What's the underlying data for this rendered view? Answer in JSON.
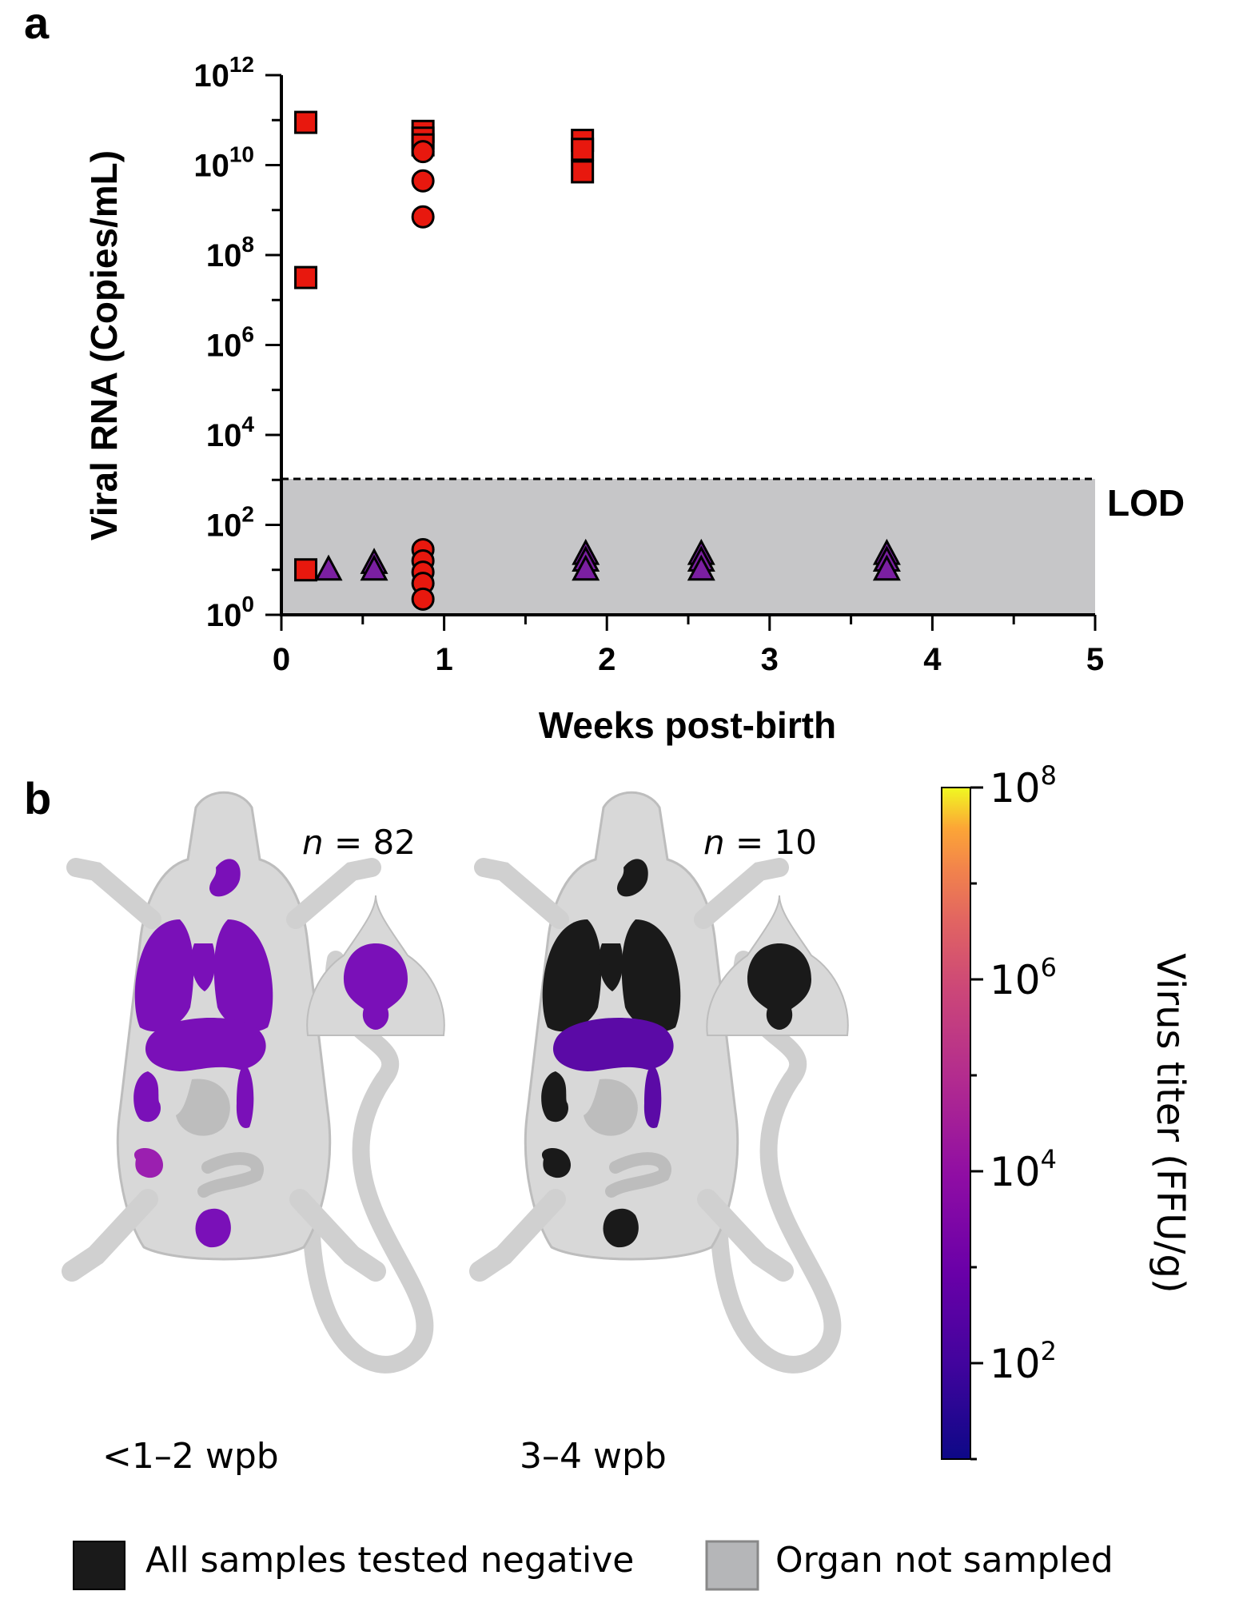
{
  "panel_a": {
    "label": "a"
  },
  "panel_b": {
    "label": "b",
    "left": {
      "n_italic": "n",
      "n_value": " = 82",
      "caption": "<1–2 wpb"
    },
    "right": {
      "n_italic": "n",
      "n_value": " = 10",
      "caption": "3–4 wpb"
    },
    "colorbar": {
      "title": "Virus titer (FFU/g)",
      "ticks": [
        {
          "base": "10",
          "exp": "8",
          "value": 8
        },
        {
          "base": "10",
          "exp": "6",
          "value": 6
        },
        {
          "base": "10",
          "exp": "4",
          "value": 4
        },
        {
          "base": "10",
          "exp": "2",
          "value": 2
        }
      ],
      "range_log10": [
        1,
        8
      ],
      "colormap": "plasma",
      "organ_fill_left": "#7a10b8",
      "organ_fill_left_repro": "#9b1fb0",
      "organ_fill_right": "#5b0aa6",
      "negative_color": "#1a1a1a",
      "not_sampled_color": "#b5b6b8"
    },
    "legend": {
      "negative_label": "All samples tested negative",
      "not_sampled_label": "Organ not sampled"
    }
  },
  "chart_data": {
    "type": "scatter",
    "title": "",
    "xlabel": "Weeks post-birth",
    "ylabel": "Viral RNA (Copies/mL)",
    "xlim": [
      0,
      5
    ],
    "ylim_log10": [
      0,
      12
    ],
    "yscale": "log",
    "x_ticks": [
      "0",
      "1",
      "2",
      "3",
      "4",
      "5"
    ],
    "y_ticks": [
      {
        "base": "10",
        "exp": "12",
        "value": 12
      },
      {
        "base": "10",
        "exp": "10",
        "value": 10
      },
      {
        "base": "10",
        "exp": "8",
        "value": 8
      },
      {
        "base": "10",
        "exp": "6",
        "value": 6
      },
      {
        "base": "10",
        "exp": "4",
        "value": 4
      },
      {
        "base": "10",
        "exp": "2",
        "value": 2
      },
      {
        "base": "10",
        "exp": "0",
        "value": 0
      }
    ],
    "lod": {
      "label": "LOD",
      "log10_value": 3
    },
    "series": [
      {
        "marker": "square",
        "color": "#e8180e",
        "points": [
          {
            "x": 0.15,
            "log10y": 10.95
          },
          {
            "x": 0.15,
            "log10y": 7.5
          },
          {
            "x": 0.15,
            "log10y": 1.0
          },
          {
            "x": 0.87,
            "log10y": 10.75
          },
          {
            "x": 0.87,
            "log10y": 10.6
          },
          {
            "x": 0.87,
            "log10y": 10.45
          },
          {
            "x": 1.85,
            "log10y": 10.55
          },
          {
            "x": 1.85,
            "log10y": 10.35
          },
          {
            "x": 1.85,
            "log10y": 9.85
          }
        ]
      },
      {
        "marker": "circle",
        "color": "#e8180e",
        "points": [
          {
            "x": 0.87,
            "log10y": 10.3
          },
          {
            "x": 0.87,
            "log10y": 9.65
          },
          {
            "x": 0.87,
            "log10y": 8.85
          },
          {
            "x": 0.87,
            "log10y": 1.45
          },
          {
            "x": 0.87,
            "log10y": 1.2
          },
          {
            "x": 0.87,
            "log10y": 0.95
          },
          {
            "x": 0.87,
            "log10y": 0.7
          },
          {
            "x": 0.87,
            "log10y": 0.35
          }
        ]
      },
      {
        "marker": "triangle",
        "color": "#7b1fa2",
        "points": [
          {
            "x": 0.29,
            "log10y": 1.0
          },
          {
            "x": 0.57,
            "log10y": 1.15
          },
          {
            "x": 0.57,
            "log10y": 1.0
          },
          {
            "x": 1.87,
            "log10y": 1.35
          },
          {
            "x": 1.87,
            "log10y": 1.2
          },
          {
            "x": 1.87,
            "log10y": 1.0
          },
          {
            "x": 2.58,
            "log10y": 1.35
          },
          {
            "x": 2.58,
            "log10y": 1.2
          },
          {
            "x": 2.58,
            "log10y": 1.0
          },
          {
            "x": 3.72,
            "log10y": 1.35
          },
          {
            "x": 3.72,
            "log10y": 1.2
          },
          {
            "x": 3.72,
            "log10y": 1.0
          }
        ]
      }
    ]
  }
}
